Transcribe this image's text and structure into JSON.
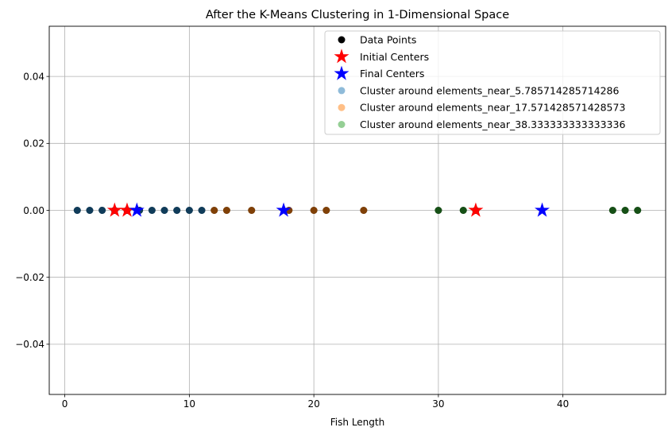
{
  "chart_data": {
    "type": "scatter",
    "title": "After the K-Means Clustering in 1-Dimensional Space",
    "xlabel": "Fish Length",
    "ylabel": "",
    "xlim": [
      -1.25,
      48.25
    ],
    "ylim": [
      -0.055,
      0.055
    ],
    "xticks": [
      0,
      10,
      20,
      30,
      40
    ],
    "yticks": [
      0.04,
      0.02,
      0.0,
      -0.02,
      -0.04
    ],
    "ytick_labels": [
      "0.04",
      "0.02",
      "0.00",
      "−0.02",
      "−0.04"
    ],
    "grid": true,
    "legend_position": "top-right",
    "series": [
      {
        "name": "Data Points",
        "marker": "circle",
        "color": "#000000",
        "x": [
          1,
          2,
          3,
          4,
          5,
          6,
          7,
          8,
          9,
          10,
          11,
          12,
          13,
          15,
          18,
          20,
          21,
          24,
          30,
          32,
          33,
          44,
          45,
          46
        ],
        "y": [
          0,
          0,
          0,
          0,
          0,
          0,
          0,
          0,
          0,
          0,
          0,
          0,
          0,
          0,
          0,
          0,
          0,
          0,
          0,
          0,
          0,
          0,
          0,
          0
        ]
      },
      {
        "name": "Initial Centers",
        "marker": "star",
        "color": "#ff0000",
        "x": [
          4,
          5,
          33
        ],
        "y": [
          0,
          0,
          0
        ]
      },
      {
        "name": "Final Centers",
        "marker": "star",
        "color": "#0000ff",
        "x": [
          5.785714285714286,
          17.571428571428573,
          38.333333333333336
        ],
        "y": [
          0,
          0,
          0
        ]
      },
      {
        "name": "Cluster around elements_near_5.785714285714286",
        "marker": "circle",
        "color": "#1f77b4",
        "alpha": 0.5,
        "x": [
          1,
          2,
          3,
          4,
          5,
          6,
          7,
          8,
          9,
          10,
          11
        ],
        "y": [
          0,
          0,
          0,
          0,
          0,
          0,
          0,
          0,
          0,
          0,
          0
        ]
      },
      {
        "name": "Cluster around elements_near_17.571428571428573",
        "marker": "circle",
        "color": "#ff7f0e",
        "alpha": 0.5,
        "x": [
          12,
          13,
          15,
          18,
          20,
          21,
          24
        ],
        "y": [
          0,
          0,
          0,
          0,
          0,
          0,
          0
        ]
      },
      {
        "name": "Cluster around elements_near_38.333333333333336",
        "marker": "circle",
        "color": "#2ca02c",
        "alpha": 0.5,
        "x": [
          30,
          32,
          33,
          44,
          45,
          46
        ],
        "y": [
          0,
          0,
          0,
          0,
          0,
          0
        ]
      }
    ],
    "draw_order": [
      0,
      3,
      4,
      5,
      1,
      2
    ]
  }
}
